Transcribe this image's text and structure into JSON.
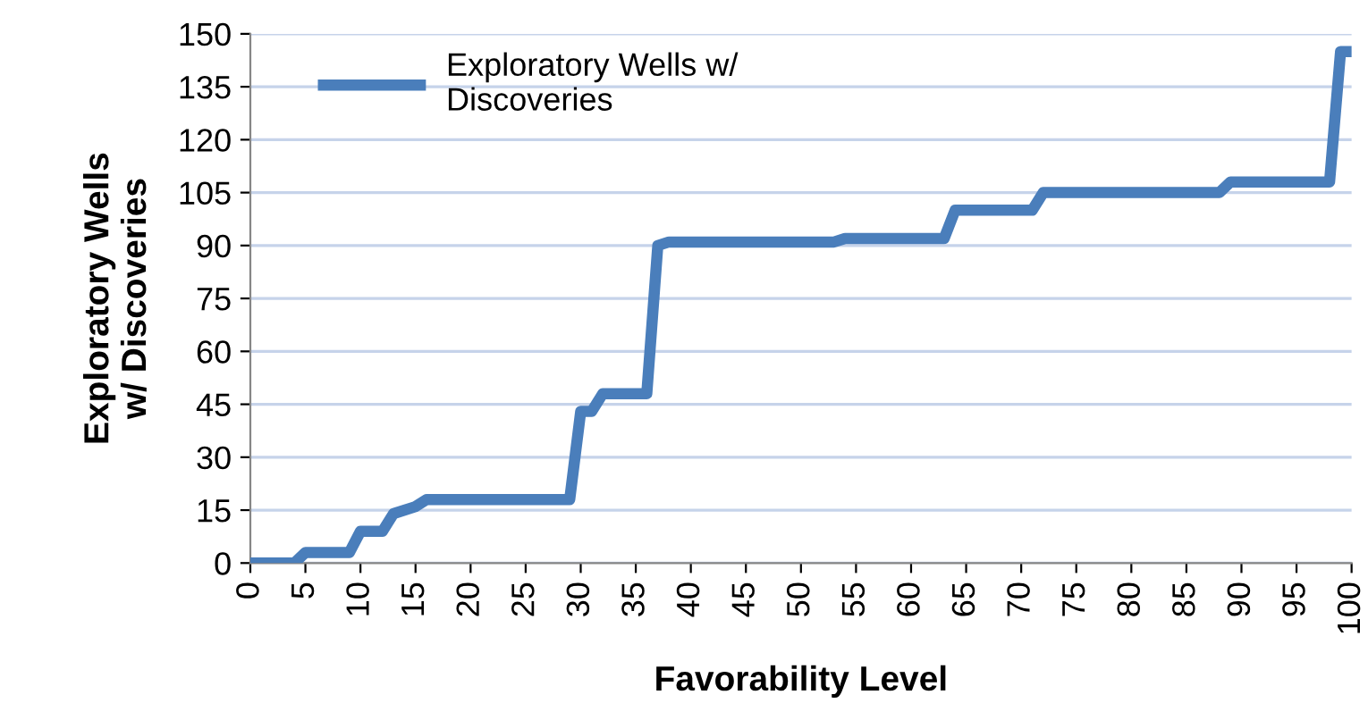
{
  "chart_data": {
    "type": "line",
    "xlabel": "Favorability Level",
    "ylabel": "Exploratory Wells\nw/ Discoveries",
    "series": [
      {
        "name": "Exploratory Wells w/\nDiscoveries",
        "color": "#4a7ebb",
        "x": [
          0,
          4,
          5,
          9,
          10,
          12,
          13,
          15,
          16,
          29,
          30,
          31,
          32,
          36,
          37,
          38,
          53,
          54,
          63,
          64,
          71,
          72,
          88,
          89,
          98,
          99,
          100
        ],
        "values": [
          0,
          0,
          3,
          3,
          9,
          9,
          14,
          16,
          18,
          18,
          43,
          43,
          48,
          48,
          90,
          91,
          91,
          92,
          92,
          100,
          100,
          105,
          105,
          108,
          108,
          145,
          145
        ]
      }
    ],
    "xlim": [
      0,
      100
    ],
    "xticks": [
      0,
      5,
      10,
      15,
      20,
      25,
      30,
      35,
      40,
      45,
      50,
      55,
      60,
      65,
      70,
      75,
      80,
      85,
      90,
      95,
      100
    ],
    "ylim": [
      0,
      150
    ],
    "yticks": [
      0,
      15,
      30,
      45,
      60,
      75,
      90,
      105,
      120,
      135,
      150
    ],
    "grid": "y",
    "legend": "top left",
    "marker": "none",
    "line_style": "solid"
  }
}
